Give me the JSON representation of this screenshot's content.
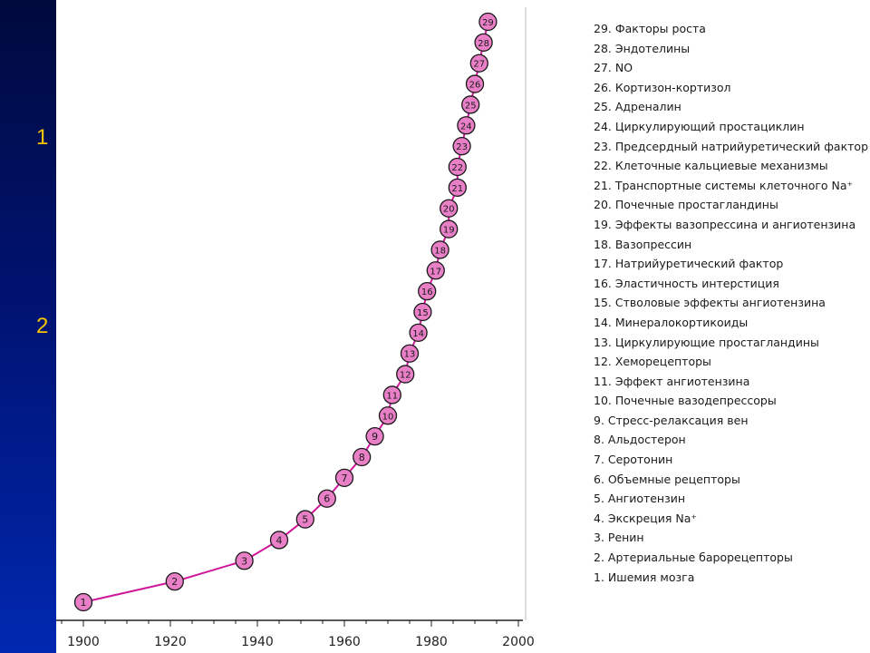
{
  "background_fragments": [
    "1",
    "2"
  ],
  "chart_data": {
    "type": "scatter",
    "title": "",
    "xlabel": "",
    "ylabel": "",
    "xlim": [
      1895,
      2000
    ],
    "x_ticks": [
      1900,
      1920,
      1940,
      1960,
      1980,
      2000
    ],
    "grid": false,
    "legend_position": "right",
    "marker_color": "#e97fc7",
    "line_color": "#d0179a",
    "points": [
      {
        "n": "1",
        "year": 1900,
        "label": "1. Ишемия мозга"
      },
      {
        "n": "2",
        "year": 1921,
        "label": "2. Артериальные барорецепторы"
      },
      {
        "n": "3",
        "year": 1937,
        "label": "3. Ренин"
      },
      {
        "n": "4",
        "year": 1945,
        "label": "4. Экскреция Na⁺"
      },
      {
        "n": "5",
        "year": 1951,
        "label": "5. Ангиотензин"
      },
      {
        "n": "6",
        "year": 1956,
        "label": "6. Объемные рецепторы"
      },
      {
        "n": "7",
        "year": 1960,
        "label": "7. Серотонин"
      },
      {
        "n": "8",
        "year": 1964,
        "label": "8. Альдостерон"
      },
      {
        "n": "9",
        "year": 1967,
        "label": "9. Стресс-релаксация вен"
      },
      {
        "n": "10",
        "year": 1970,
        "label": "10. Почечные вазодепрессоры"
      },
      {
        "n": "11",
        "year": 1971,
        "label": "11. Эффект ангиотензина"
      },
      {
        "n": "12",
        "year": 1974,
        "label": "12. Хеморецепторы"
      },
      {
        "n": "13",
        "year": 1975,
        "label": "13. Циркулирующие простагландины"
      },
      {
        "n": "14",
        "year": 1977,
        "label": "14. Минералокортикоиды"
      },
      {
        "n": "15",
        "year": 1978,
        "label": "15. Стволовые эффекты ангиотензина"
      },
      {
        "n": "16",
        "year": 1979,
        "label": "16. Эластичность интерстиция"
      },
      {
        "n": "17",
        "year": 1981,
        "label": "17. Натрийуретический фактор"
      },
      {
        "n": "18",
        "year": 1982,
        "label": "18. Вазопрессин"
      },
      {
        "n": "19",
        "year": 1984,
        "label": "19. Эффекты вазопрессина и ангиотензина"
      },
      {
        "n": "20",
        "year": 1984,
        "label": "20. Почечные простагландины"
      },
      {
        "n": "21",
        "year": 1986,
        "label": "21. Транспортные системы клеточного Na⁺"
      },
      {
        "n": "22",
        "year": 1986,
        "label": "22. Клеточные кальциевые механизмы"
      },
      {
        "n": "23",
        "year": 1987,
        "label": "23. Предсердный натрийуретический фактор"
      },
      {
        "n": "24",
        "year": 1988,
        "label": "24. Циркулирующий простациклин"
      },
      {
        "n": "25",
        "year": 1989,
        "label": "25. Адреналин"
      },
      {
        "n": "26",
        "year": 1990,
        "label": "26. Кортизон-кортизол"
      },
      {
        "n": "27",
        "year": 1991,
        "label": "27. NO"
      },
      {
        "n": "28",
        "year": 1992,
        "label": "28. Эндотелины"
      },
      {
        "n": "29",
        "year": 1993,
        "label": "29. Факторы роста"
      }
    ]
  }
}
